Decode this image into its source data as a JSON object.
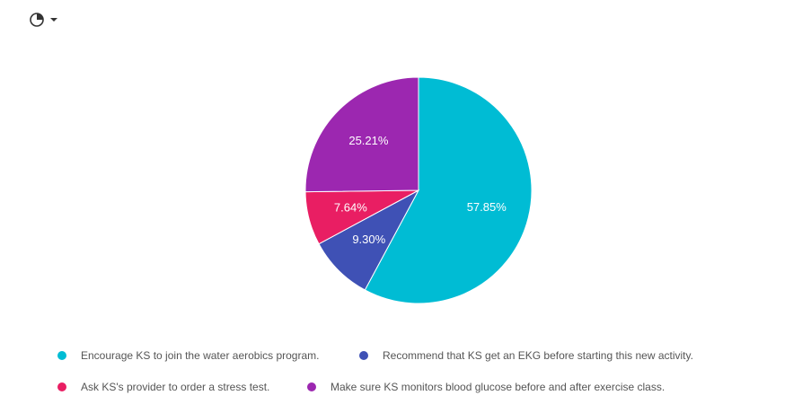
{
  "toolbar": {
    "chart_type_icon": "pie-chart-icon",
    "dropdown_icon": "caret-down-icon"
  },
  "colors": {
    "text": "#555555"
  },
  "chart_data": {
    "type": "pie",
    "slices": [
      {
        "label": "Encourage KS to join the water aerobics program.",
        "value": 57.85,
        "display": "57.85%",
        "color": "#00BCD4"
      },
      {
        "label": "Recommend that KS get an EKG before starting this new activity.",
        "value": 9.3,
        "display": "9.30%",
        "color": "#3F51B5"
      },
      {
        "label": "Ask KS's provider to order a stress test.",
        "value": 7.64,
        "display": "7.64%",
        "color": "#E91E63"
      },
      {
        "label": "Make sure KS monitors blood glucose before and after exercise class.",
        "value": 25.21,
        "display": "25.21%",
        "color": "#9C27B0"
      }
    ],
    "legend_position": "bottom"
  }
}
